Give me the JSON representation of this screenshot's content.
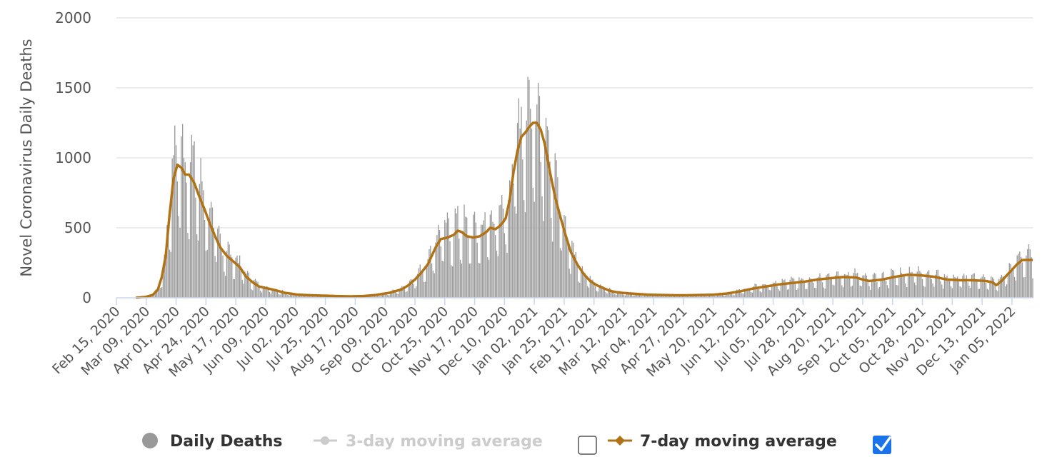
{
  "chart_data": {
    "type": "bar",
    "title": "",
    "ylabel": "Novel Coronavirus Daily Deaths",
    "xlabel": "",
    "ylim": [
      0,
      2000
    ],
    "y_ticks": [
      0,
      500,
      1000,
      1500,
      2000
    ],
    "x_tick_labels": [
      "Feb 15, 2020",
      "Mar 09, 2020",
      "Apr 01, 2020",
      "Apr 24, 2020",
      "May 17, 2020",
      "Jun 09, 2020",
      "Jul 02, 2020",
      "Jul 25, 2020",
      "Aug 17, 2020",
      "Sep 09, 2020",
      "Oct 02, 2020",
      "Oct 25, 2020",
      "Nov 17, 2020",
      "Dec 10, 2020",
      "Jan 02, 2021",
      "Jan 25, 2021",
      "Feb 17, 2021",
      "Mar 12, 2021",
      "Apr 04, 2021",
      "Apr 27, 2021",
      "May 20, 2021",
      "Jun 12, 2021",
      "Jul 05, 2021",
      "Jul 28, 2021",
      "Aug 20, 2021",
      "Sep 12, 2021",
      "Oct 05, 2021",
      "Oct 28, 2021",
      "Nov 20, 2021",
      "Dec 13, 2021",
      "Jan 05, 2022"
    ],
    "x_range_days": [
      0,
      706
    ],
    "tick_interval_days": 23,
    "daily_series_name": "Daily Deaths",
    "avg_keypoints": [
      [
        0,
        0
      ],
      [
        15,
        0
      ],
      [
        22,
        5
      ],
      [
        28,
        20
      ],
      [
        32,
        60
      ],
      [
        35,
        150
      ],
      [
        38,
        300
      ],
      [
        41,
        600
      ],
      [
        44,
        850
      ],
      [
        47,
        950
      ],
      [
        50,
        930
      ],
      [
        53,
        880
      ],
      [
        56,
        880
      ],
      [
        60,
        820
      ],
      [
        64,
        720
      ],
      [
        68,
        630
      ],
      [
        72,
        530
      ],
      [
        76,
        440
      ],
      [
        80,
        360
      ],
      [
        85,
        300
      ],
      [
        90,
        260
      ],
      [
        95,
        220
      ],
      [
        100,
        150
      ],
      [
        105,
        110
      ],
      [
        110,
        80
      ],
      [
        115,
        70
      ],
      [
        122,
        55
      ],
      [
        130,
        35
      ],
      [
        140,
        22
      ],
      [
        150,
        18
      ],
      [
        160,
        15
      ],
      [
        170,
        12
      ],
      [
        180,
        10
      ],
      [
        190,
        12
      ],
      [
        200,
        20
      ],
      [
        210,
        35
      ],
      [
        220,
        60
      ],
      [
        225,
        90
      ],
      [
        230,
        130
      ],
      [
        235,
        180
      ],
      [
        240,
        240
      ],
      [
        243,
        300
      ],
      [
        246,
        360
      ],
      [
        250,
        420
      ],
      [
        255,
        430
      ],
      [
        260,
        450
      ],
      [
        263,
        480
      ],
      [
        266,
        470
      ],
      [
        270,
        440
      ],
      [
        275,
        430
      ],
      [
        280,
        440
      ],
      [
        285,
        470
      ],
      [
        288,
        500
      ],
      [
        292,
        490
      ],
      [
        295,
        510
      ],
      [
        298,
        540
      ],
      [
        300,
        570
      ],
      [
        303,
        700
      ],
      [
        306,
        900
      ],
      [
        309,
        1050
      ],
      [
        312,
        1150
      ],
      [
        315,
        1180
      ],
      [
        318,
        1220
      ],
      [
        321,
        1250
      ],
      [
        324,
        1250
      ],
      [
        327,
        1200
      ],
      [
        330,
        1100
      ],
      [
        334,
        900
      ],
      [
        338,
        720
      ],
      [
        342,
        580
      ],
      [
        346,
        450
      ],
      [
        350,
        330
      ],
      [
        355,
        240
      ],
      [
        360,
        170
      ],
      [
        365,
        120
      ],
      [
        370,
        90
      ],
      [
        375,
        70
      ],
      [
        380,
        50
      ],
      [
        385,
        40
      ],
      [
        390,
        35
      ],
      [
        400,
        28
      ],
      [
        410,
        22
      ],
      [
        420,
        20
      ],
      [
        430,
        18
      ],
      [
        440,
        18
      ],
      [
        450,
        20
      ],
      [
        460,
        22
      ],
      [
        470,
        30
      ],
      [
        480,
        45
      ],
      [
        490,
        65
      ],
      [
        500,
        80
      ],
      [
        510,
        95
      ],
      [
        520,
        105
      ],
      [
        530,
        115
      ],
      [
        540,
        130
      ],
      [
        550,
        140
      ],
      [
        560,
        148
      ],
      [
        570,
        145
      ],
      [
        575,
        130
      ],
      [
        580,
        120
      ],
      [
        585,
        125
      ],
      [
        590,
        130
      ],
      [
        600,
        150
      ],
      [
        610,
        165
      ],
      [
        620,
        160
      ],
      [
        630,
        150
      ],
      [
        640,
        130
      ],
      [
        650,
        125
      ],
      [
        660,
        125
      ],
      [
        670,
        120
      ],
      [
        675,
        110
      ],
      [
        678,
        90
      ],
      [
        682,
        120
      ],
      [
        686,
        160
      ],
      [
        690,
        200
      ],
      [
        694,
        240
      ],
      [
        698,
        270
      ],
      [
        702,
        270
      ],
      [
        706,
        270
      ]
    ],
    "legend": [
      {
        "name": "Daily Deaths",
        "color": "#999999",
        "enabled": true
      },
      {
        "name": "3-day moving average",
        "color": "#cccccc",
        "enabled": false
      },
      {
        "name": "7-day moving average",
        "color": "#b07214",
        "enabled": true
      }
    ]
  },
  "colors": {
    "bar": "#999999",
    "avg7": "#b07214",
    "grid": "#e6e6e6",
    "axis": "#ccd6eb",
    "text": "#555555",
    "legend_active": "#333333",
    "legend_inactive": "#cccccc",
    "checkbox_checked": "#1a73e8"
  }
}
